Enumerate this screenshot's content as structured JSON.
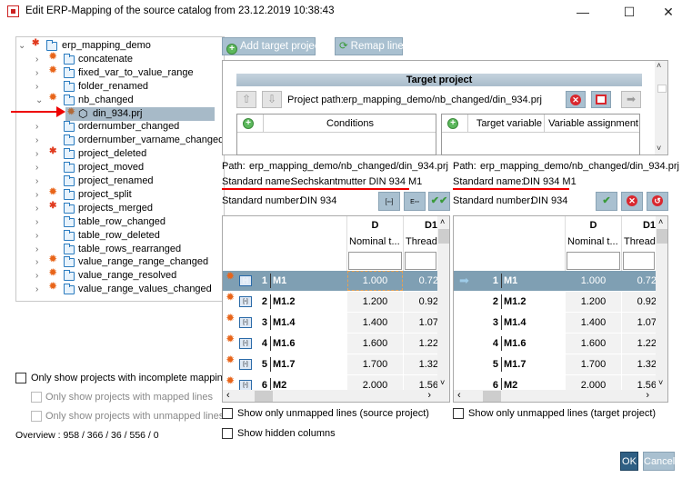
{
  "window": {
    "title": "Edit ERP-Mapping of the source catalog from 23.12.2019 10:38:43",
    "minimize": "—",
    "maximize": "☐",
    "close": "✕"
  },
  "tree": {
    "root": {
      "label": "erp_mapping_demo",
      "status": "error"
    },
    "items": [
      {
        "label": "concatenate",
        "status": "warning"
      },
      {
        "label": "fixed_var_to_value_range",
        "status": "warning"
      },
      {
        "label": "folder_renamed",
        "status": ""
      },
      {
        "label": "nb_changed",
        "status": "warning",
        "expanded": true
      },
      {
        "label": "din_934.prj",
        "status": "warning",
        "selected": true,
        "child": true
      },
      {
        "label": "ordernumber_changed",
        "status": ""
      },
      {
        "label": "ordernumber_varname_changed",
        "status": ""
      },
      {
        "label": "project_deleted",
        "status": "error"
      },
      {
        "label": "project_moved",
        "status": ""
      },
      {
        "label": "project_renamed",
        "status": ""
      },
      {
        "label": "project_split",
        "status": "warning"
      },
      {
        "label": "projects_merged",
        "status": "error"
      },
      {
        "label": "table_row_changed",
        "status": ""
      },
      {
        "label": "table_row_deleted",
        "status": ""
      },
      {
        "label": "table_rows_rearranged",
        "status": ""
      },
      {
        "label": "value_range_range_changed",
        "status": "warning"
      },
      {
        "label": "value_range_resolved",
        "status": "warning"
      },
      {
        "label": "value_range_values_changed",
        "status": "warning"
      }
    ]
  },
  "filters": {
    "incomplete": "Only show projects with incomplete mappings",
    "mapped": "Only show projects with mapped lines",
    "unmapped": "Only show projects with unmapped lines",
    "overview": "Overview : 958 / 366 / 36 / 556 / 0"
  },
  "toolbar": {
    "add_target": "Add target project",
    "remap": "Remap lines"
  },
  "target": {
    "header": "Target project",
    "project_path_label": "Project path:",
    "project_path": "erp_mapping_demo/nb_changed/din_934.prj",
    "conditions": "Conditions",
    "target_variable": "Target variable",
    "variable_assignment": "Variable assignment"
  },
  "source_info": {
    "path_label": "Path:",
    "path": "erp_mapping_demo/nb_changed/din_934.prj",
    "std_name_label": "Standard name:",
    "std_name": "Sechskantmutter DIN 934  M1",
    "std_number_label": "Standard number:",
    "std_number": "DIN 934"
  },
  "target_info": {
    "path_label": "Path:",
    "path": "erp_mapping_demo/nb_changed/din_934.prj",
    "std_name_label": "Standard name:",
    "std_name": "DIN 934  M1",
    "std_number_label": "Standard number:",
    "std_number": "DIN 934"
  },
  "columns": [
    {
      "name": "D",
      "desc": "Nominal t..."
    },
    {
      "name": "D1",
      "desc": "Thread"
    }
  ],
  "source_rows": [
    {
      "n": "1",
      "name": "M1",
      "d": "1.000",
      "d1": "0.72"
    },
    {
      "n": "2",
      "name": "M1.2",
      "d": "1.200",
      "d1": "0.92"
    },
    {
      "n": "3",
      "name": "M1.4",
      "d": "1.400",
      "d1": "1.07"
    },
    {
      "n": "4",
      "name": "M1.6",
      "d": "1.600",
      "d1": "1.22"
    },
    {
      "n": "5",
      "name": "M1.7",
      "d": "1.700",
      "d1": "1.32"
    },
    {
      "n": "6",
      "name": "M2",
      "d": "2.000",
      "d1": "1.56"
    }
  ],
  "target_rows": [
    {
      "n": "1",
      "name": "M1",
      "d": "1.000",
      "d1": "0.72"
    },
    {
      "n": "2",
      "name": "M1.2",
      "d": "1.200",
      "d1": "0.92"
    },
    {
      "n": "3",
      "name": "M1.4",
      "d": "1.400",
      "d1": "1.07"
    },
    {
      "n": "4",
      "name": "M1.6",
      "d": "1.600",
      "d1": "1.22"
    },
    {
      "n": "5",
      "name": "M1.7",
      "d": "1.700",
      "d1": "1.32"
    },
    {
      "n": "6",
      "name": "M2",
      "d": "2.000",
      "d1": "1.56"
    }
  ],
  "options": {
    "unmapped_source": "Show only unmapped lines (source project)",
    "unmapped_target": "Show only unmapped lines (target project)",
    "hidden_columns": "Show hidden columns"
  },
  "footer": {
    "ok": "OK",
    "cancel": "Cancel"
  },
  "colors": {
    "accent": "#a9c0d0",
    "selected_row": "#7f9fb3",
    "highlight": "#e00000",
    "warning": "#e8651a"
  }
}
